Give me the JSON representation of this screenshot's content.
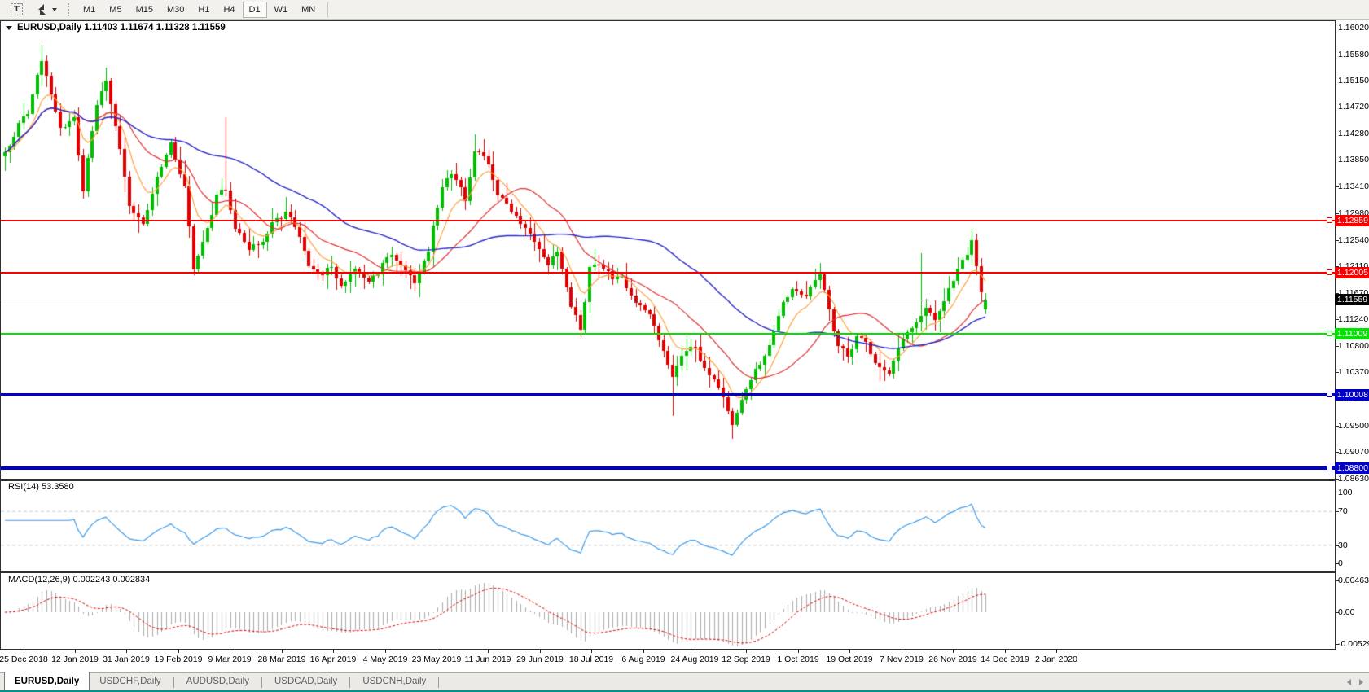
{
  "toolbar": {
    "text_tool_glyph": "T",
    "timeframes": [
      "M1",
      "M5",
      "M15",
      "M30",
      "H1",
      "H4",
      "D1",
      "W1",
      "MN"
    ],
    "active_timeframe": "D1"
  },
  "chart": {
    "title": "EURUSD,Daily 1.11403 1.11674 1.11328 1.11559",
    "symbol": "EURUSD",
    "timeframe": "Daily",
    "ohlc": {
      "open": "1.11403",
      "high": "1.11674",
      "low": "1.11328",
      "close": "1.11559"
    }
  },
  "price_axis": {
    "max": 1.16122,
    "min": 1.0863,
    "labels": [
      "1.16020",
      "1.15580",
      "1.15150",
      "1.14720",
      "1.14280",
      "1.13850",
      "1.13410",
      "1.12980",
      "1.12540",
      "1.12110",
      "1.11670",
      "1.11240",
      "1.10800",
      "1.10370",
      "1.09930",
      "1.09500",
      "1.09070",
      "1.08630"
    ]
  },
  "hlines": [
    {
      "price": 1.12859,
      "label": "1.12859",
      "color": "#F60000",
      "width": 2,
      "handle": true
    },
    {
      "price": 1.12005,
      "label": "1.12005",
      "color": "#F60000",
      "width": 2,
      "handle": true
    },
    {
      "price": 1.11559,
      "label": "1.11559",
      "color": "#C8C8C8",
      "width": 1,
      "label_bg": "#000000",
      "handle": false,
      "role": "bid-price-line"
    },
    {
      "price": 1.11009,
      "label": "1.11009",
      "color": "#00E400",
      "width": 2,
      "handle": true
    },
    {
      "price": 1.10008,
      "label": "1.10008",
      "color": "#0000C8",
      "width": 3,
      "handle": true
    },
    {
      "price": 1.088,
      "label": "1.08800",
      "color": "#0000C8",
      "width": 4,
      "handle": true
    }
  ],
  "rsi": {
    "label": "RSI(14) 53.3580",
    "period": 14,
    "value": "53.3580",
    "levels": [
      "100",
      "70",
      "30",
      "0"
    ],
    "color": "#3E9BE9"
  },
  "macd": {
    "label": "MACD(12,26,9) 0.002243 0.002834",
    "params": "12,26,9",
    "values": [
      "0.002243",
      "0.002834"
    ],
    "axis": [
      "0.00463",
      "0.00",
      "-0.00529"
    ]
  },
  "date_axis": [
    "25 Dec 2018",
    "12 Jan 2019",
    "31 Jan 2019",
    "19 Feb 2019",
    "9 Mar 2019",
    "28 Mar 2019",
    "16 Apr 2019",
    "4 May 2019",
    "23 May 2019",
    "11 Jun 2019",
    "29 Jun 2019",
    "18 Jul 2019",
    "6 Aug 2019",
    "24 Aug 2019",
    "12 Sep 2019",
    "1 Oct 2019",
    "19 Oct 2019",
    "7 Nov 2019",
    "26 Nov 2019",
    "14 Dec 2019",
    "2 Jan 2020"
  ],
  "tabs": [
    "EURUSD,Daily",
    "USDCHF,Daily",
    "AUDUSD,Daily",
    "USDCAD,Daily",
    "USDCNH,Daily"
  ],
  "active_tab": "EURUSD,Daily",
  "chart_data": {
    "type": "candlestick",
    "symbol": "EURUSD",
    "timeframe": "D1",
    "bars": 214,
    "seed": 12,
    "range": {
      "first_date": "25 Dec 2018",
      "last_date": "2 Jan 2020",
      "price_high": 1.1573,
      "price_low": 1.0928
    },
    "colors": {
      "up": "#00BE00",
      "down": "#E10000",
      "ma_fast": "#FFA040",
      "ma_mid": "#E03030",
      "ma_slow": "#2828C8",
      "hist": "#ABABAB",
      "signal": "#E00000"
    },
    "ma": {
      "fast": 8,
      "mid": 20,
      "slow": 50
    },
    "indicators": {
      "rsi_period": 14,
      "macd": [
        12,
        26,
        9
      ]
    },
    "anchors": [
      [
        0,
        1.1402
      ],
      [
        3,
        1.144
      ],
      [
        5,
        1.147
      ],
      [
        8,
        1.1545
      ],
      [
        10,
        1.1495
      ],
      [
        12,
        1.1435
      ],
      [
        15,
        1.145
      ],
      [
        17,
        1.133
      ],
      [
        20,
        1.148
      ],
      [
        22,
        1.1512
      ],
      [
        25,
        1.141
      ],
      [
        27,
        1.1315
      ],
      [
        30,
        1.1285
      ],
      [
        33,
        1.1355
      ],
      [
        36,
        1.1415
      ],
      [
        39,
        1.134
      ],
      [
        41,
        1.1215
      ],
      [
        43,
        1.125
      ],
      [
        46,
        1.133
      ],
      [
        48,
        1.134
      ],
      [
        50,
        1.1275
      ],
      [
        53,
        1.124
      ],
      [
        56,
        1.1255
      ],
      [
        58,
        1.1285
      ],
      [
        61,
        1.1305
      ],
      [
        64,
        1.126
      ],
      [
        66,
        1.122
      ],
      [
        69,
        1.119
      ],
      [
        71,
        1.121
      ],
      [
        73,
        1.1175
      ],
      [
        76,
        1.1205
      ],
      [
        79,
        1.1185
      ],
      [
        81,
        1.1205
      ],
      [
        84,
        1.1232
      ],
      [
        87,
        1.1205
      ],
      [
        89,
        1.1185
      ],
      [
        92,
        1.123
      ],
      [
        95,
        1.1345
      ],
      [
        97,
        1.1365
      ],
      [
        100,
        1.1325
      ],
      [
        102,
        1.14
      ],
      [
        105,
        1.138
      ],
      [
        107,
        1.1335
      ],
      [
        110,
        1.1305
      ],
      [
        112,
        1.1285
      ],
      [
        115,
        1.1255
      ],
      [
        118,
        1.121
      ],
      [
        120,
        1.124
      ],
      [
        123,
        1.115
      ],
      [
        125,
        1.111
      ],
      [
        127,
        1.1205
      ],
      [
        129,
        1.122
      ],
      [
        132,
        1.1185
      ],
      [
        134,
        1.1195
      ],
      [
        137,
        1.116
      ],
      [
        140,
        1.1135
      ],
      [
        142,
        1.1085
      ],
      [
        145,
        1.104
      ],
      [
        148,
        1.1075
      ],
      [
        150,
        1.108
      ],
      [
        153,
        1.1035
      ],
      [
        156,
        1.1005
      ],
      [
        158,
        1.0952
      ],
      [
        161,
        1.1005
      ],
      [
        163,
        1.104
      ],
      [
        166,
        1.1075
      ],
      [
        169,
        1.1155
      ],
      [
        171,
        1.118
      ],
      [
        174,
        1.1165
      ],
      [
        177,
        1.1195
      ],
      [
        181,
        1.1078
      ],
      [
        183,
        1.1062
      ],
      [
        185,
        1.1105
      ],
      [
        187,
        1.1085
      ],
      [
        190,
        1.1045
      ],
      [
        192,
        1.1032
      ],
      [
        194,
        1.1075
      ],
      [
        197,
        1.111
      ],
      [
        200,
        1.114
      ],
      [
        202,
        1.112
      ],
      [
        205,
        1.118
      ],
      [
        208,
        1.122
      ],
      [
        210,
        1.1253
      ],
      [
        212,
        1.1168
      ],
      [
        213,
        1.11559
      ]
    ],
    "events": [
      {
        "i": 8,
        "h": 1.1573
      },
      {
        "i": 41,
        "l": 1.1196
      },
      {
        "i": 48,
        "h": 1.1455
      },
      {
        "i": 102,
        "h": 1.1427
      },
      {
        "i": 145,
        "l": 1.0966
      },
      {
        "i": 158,
        "l": 1.0928
      },
      {
        "i": 199,
        "h": 1.1232
      },
      {
        "i": 213,
        "o": 1.11403,
        "h": 1.11674,
        "l": 1.11328,
        "c": 1.11559
      }
    ]
  },
  "colors_ui": {
    "status_strip": "#00938C",
    "toolbar_bg": "#F2F1EE",
    "pane_border": "#2F2F2F"
  }
}
